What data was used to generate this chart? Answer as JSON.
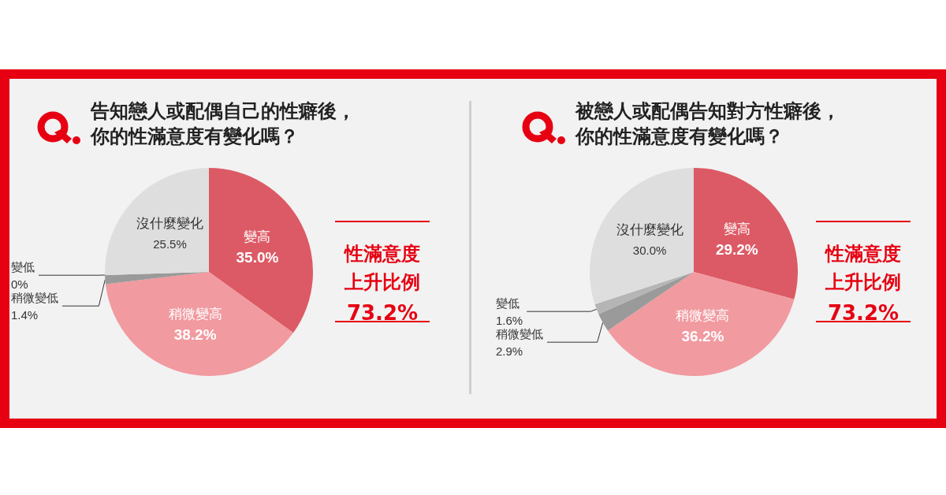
{
  "chart_data": [
    {
      "type": "pie",
      "title": "告知戀人或配偶自己的性癖後，你的性滿意度有變化嗎？",
      "categories": [
        "變高",
        "稍微變高",
        "稍微變低",
        "變低",
        "沒什麼變化"
      ],
      "values": [
        35.0,
        38.2,
        1.4,
        0,
        25.5
      ],
      "value_labels": [
        "35.0%",
        "38.2%",
        "1.4%",
        "0%",
        "25.5%"
      ],
      "colors": [
        "#dc5a65",
        "#f19aa0",
        "#9a9a9a",
        "#b5b5b5",
        "#dedede"
      ]
    },
    {
      "type": "other",
      "title": "性滿意度上升比例",
      "annotations": [
        "73.2%"
      ]
    },
    {
      "type": "pie",
      "title": "被戀人或配偶告知對方性癖後，你的性滿意度有變化嗎？",
      "categories": [
        "變高",
        "稍微變高",
        "稍微變低",
        "變低",
        "沒什麼變化"
      ],
      "values": [
        29.2,
        36.2,
        2.9,
        1.6,
        30.0
      ],
      "value_labels": [
        "29.2%",
        "36.2%",
        "2.9%",
        "1.6%",
        "30.0%"
      ],
      "colors": [
        "#dc5a65",
        "#f19aa0",
        "#9a9a9a",
        "#b5b5b5",
        "#dedede"
      ]
    },
    {
      "type": "other",
      "title": "性滿意度上升比例",
      "annotations": [
        "73.2%"
      ]
    }
  ]
}
